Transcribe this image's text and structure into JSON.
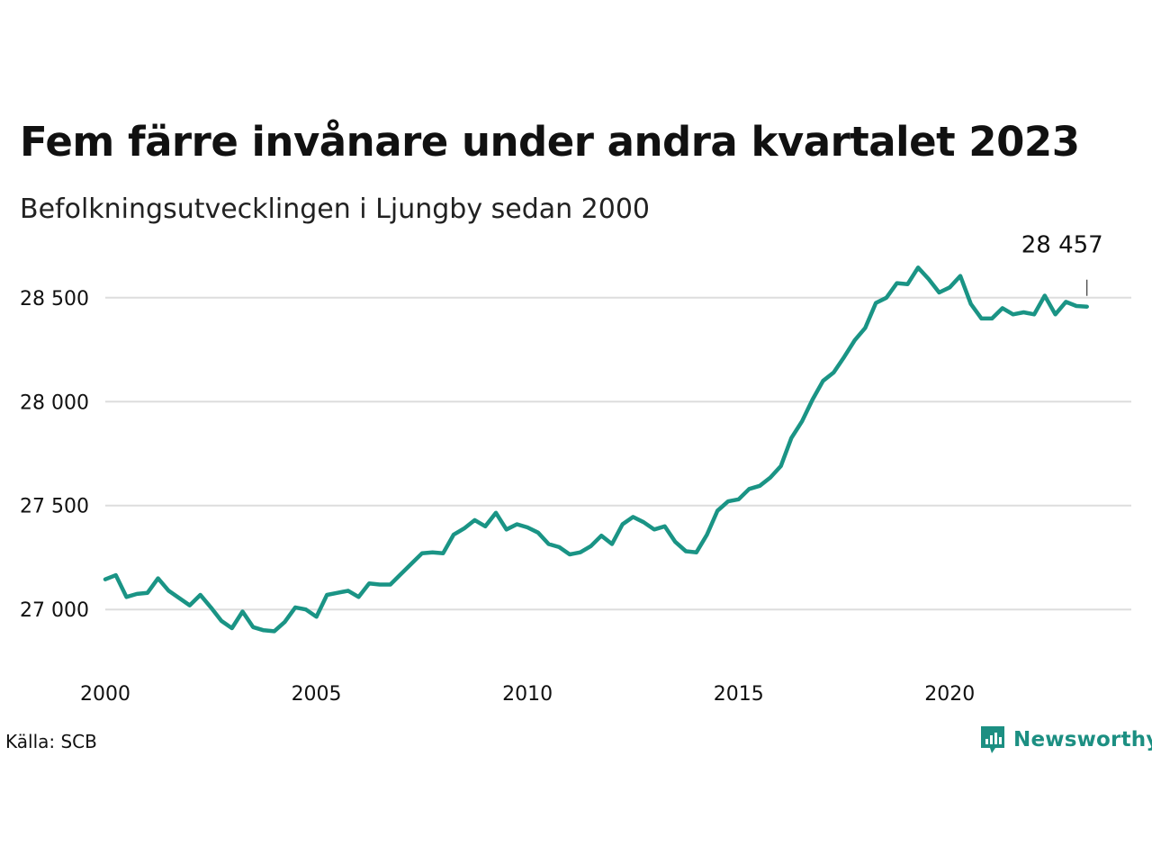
{
  "title": "Fem färre invånare under andra kvartalet 2023",
  "subtitle": "Befolkningsutvecklingen i Ljungby sedan 2000",
  "source": "Källa: SCB",
  "brand": "Newsworthy",
  "colors": {
    "line": "#1a9485",
    "grid": "#dddddd",
    "brand": "#1c8f82"
  },
  "chart_data": {
    "type": "line",
    "title": "Fem färre invånare under andra kvartalet 2023",
    "subtitle": "Befolkningsutvecklingen i Ljungby sedan 2000",
    "xlabel": "",
    "ylabel": "",
    "grid": true,
    "xlim": [
      2000,
      2024.3
    ],
    "ylim": [
      26780,
      28720
    ],
    "x_ticks": [
      2000,
      2005,
      2010,
      2015,
      2020
    ],
    "x_tick_labels": [
      "2000",
      "2005",
      "2010",
      "2015",
      "2020"
    ],
    "y_ticks": [
      27000,
      27500,
      28000,
      28500
    ],
    "y_tick_labels": [
      "27 000",
      "27 500",
      "28 000",
      "28 500"
    ],
    "annotation": {
      "label": "28 457",
      "x": 2023.25,
      "y": 28457
    },
    "series": [
      {
        "x": [
          2000.0,
          2000.25,
          2000.5,
          2000.75,
          2001.0,
          2001.25,
          2001.5,
          2001.75,
          2002.0,
          2002.25,
          2002.5,
          2002.75,
          2003.0,
          2003.25,
          2003.5,
          2003.75,
          2004.0,
          2004.25,
          2004.5,
          2004.75,
          2005.0,
          2005.25,
          2005.5,
          2005.75,
          2006.0,
          2006.25,
          2006.5,
          2006.75,
          2007.0,
          2007.25,
          2007.5,
          2007.75,
          2008.0,
          2008.25,
          2008.5,
          2008.75,
          2009.0,
          2009.25,
          2009.5,
          2009.75,
          2010.0,
          2010.25,
          2010.5,
          2010.75,
          2011.0,
          2011.25,
          2011.5,
          2011.75,
          2012.0,
          2012.25,
          2012.5,
          2012.75,
          2013.0,
          2013.25,
          2013.5,
          2013.75,
          2014.0,
          2014.25,
          2014.5,
          2014.75,
          2015.0,
          2015.25,
          2015.5,
          2015.75,
          2016.0,
          2016.25,
          2016.5,
          2016.75,
          2017.0,
          2017.25,
          2017.5,
          2017.75,
          2018.0,
          2018.25,
          2018.5,
          2018.75,
          2019.0,
          2019.25,
          2019.5,
          2019.75,
          2020.0,
          2020.25,
          2020.5,
          2020.75,
          2021.0,
          2021.25,
          2021.5,
          2021.75,
          2022.0,
          2022.25,
          2022.5,
          2022.75,
          2023.0,
          2023.25
        ],
        "y": [
          27145,
          27165,
          27060,
          27075,
          27080,
          27150,
          27090,
          27055,
          27020,
          27070,
          27010,
          26945,
          26910,
          26990,
          26915,
          26900,
          26895,
          26940,
          27010,
          27000,
          26965,
          27070,
          27080,
          27090,
          27060,
          27125,
          27120,
          27120,
          27170,
          27220,
          27270,
          27275,
          27270,
          27360,
          27390,
          27430,
          27400,
          27465,
          27385,
          27410,
          27395,
          27370,
          27315,
          27300,
          27265,
          27275,
          27305,
          27355,
          27315,
          27410,
          27445,
          27420,
          27385,
          27400,
          27325,
          27280,
          27275,
          27360,
          27475,
          27520,
          27530,
          27580,
          27595,
          27635,
          27690,
          27825,
          27905,
          28010,
          28100,
          28140,
          28215,
          28295,
          28355,
          28475,
          28500,
          28570,
          28565,
          28645,
          28590,
          28525,
          28550,
          28605,
          28470,
          28400,
          28400,
          28450,
          28420,
          28430,
          28420,
          28510,
          28420,
          28480,
          28460,
          28457
        ]
      }
    ]
  }
}
